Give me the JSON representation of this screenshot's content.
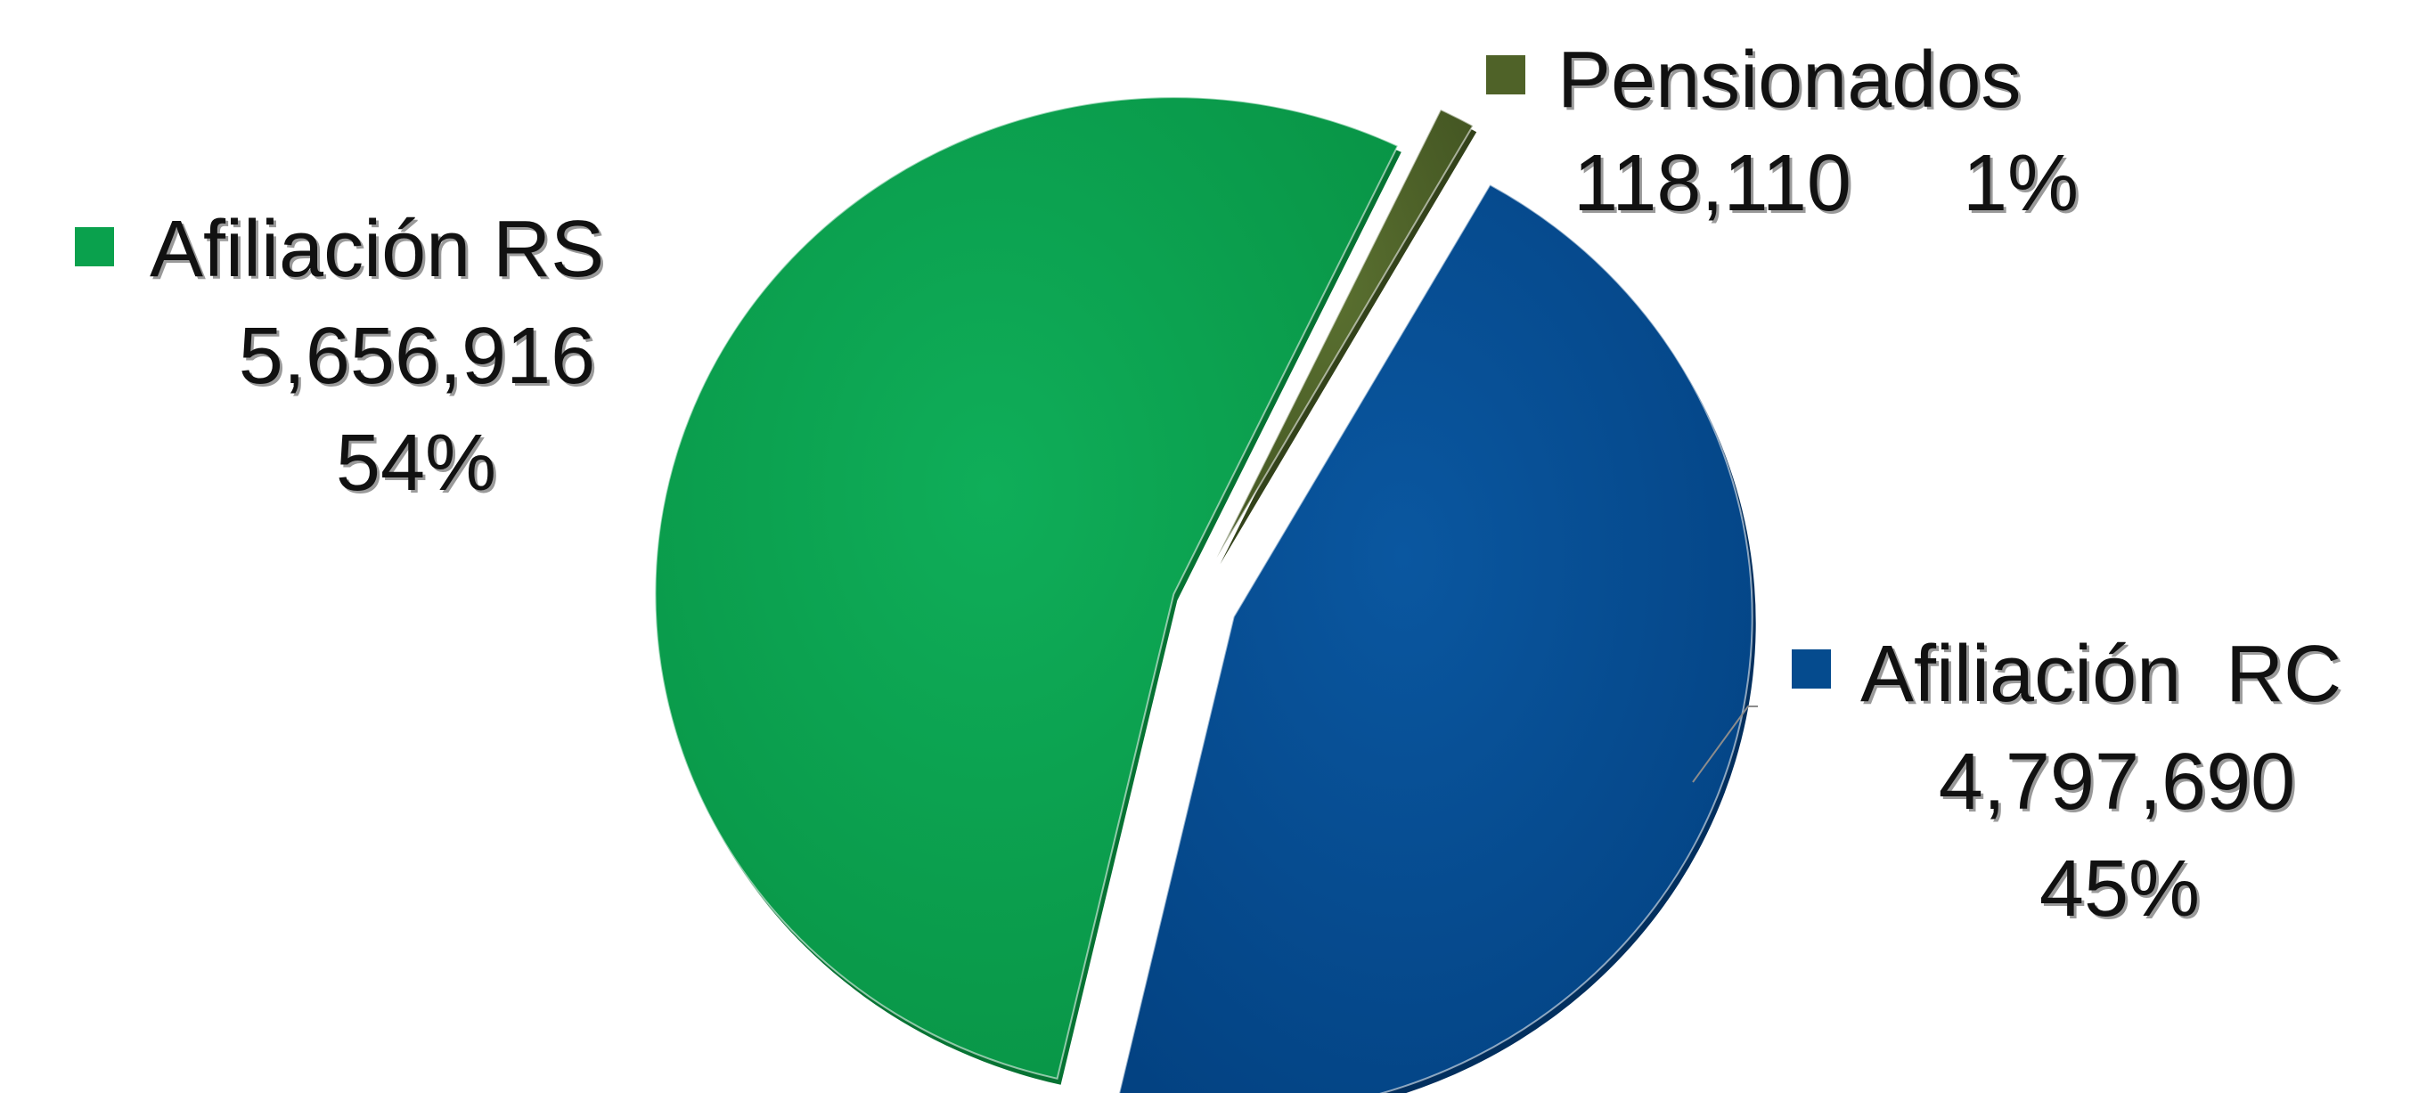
{
  "chart_data": {
    "type": "pie",
    "title": "",
    "slices": [
      {
        "name": "Pensionados",
        "value": 118110,
        "value_label": "118,110",
        "percent_label": "1%",
        "color": "#4f6228"
      },
      {
        "name": "Afiliación  RC",
        "value": 4797690,
        "value_label": "4,797,690",
        "percent_label": "45%",
        "color": "#054b8e"
      },
      {
        "name": "Afiliación RS",
        "value": 5656916,
        "value_label": "5,656,916",
        "percent_label": "54%",
        "color": "#0aa14d"
      }
    ],
    "exploded": true,
    "legend": "none",
    "data_labels": "category name, value and percent beside each slice"
  }
}
